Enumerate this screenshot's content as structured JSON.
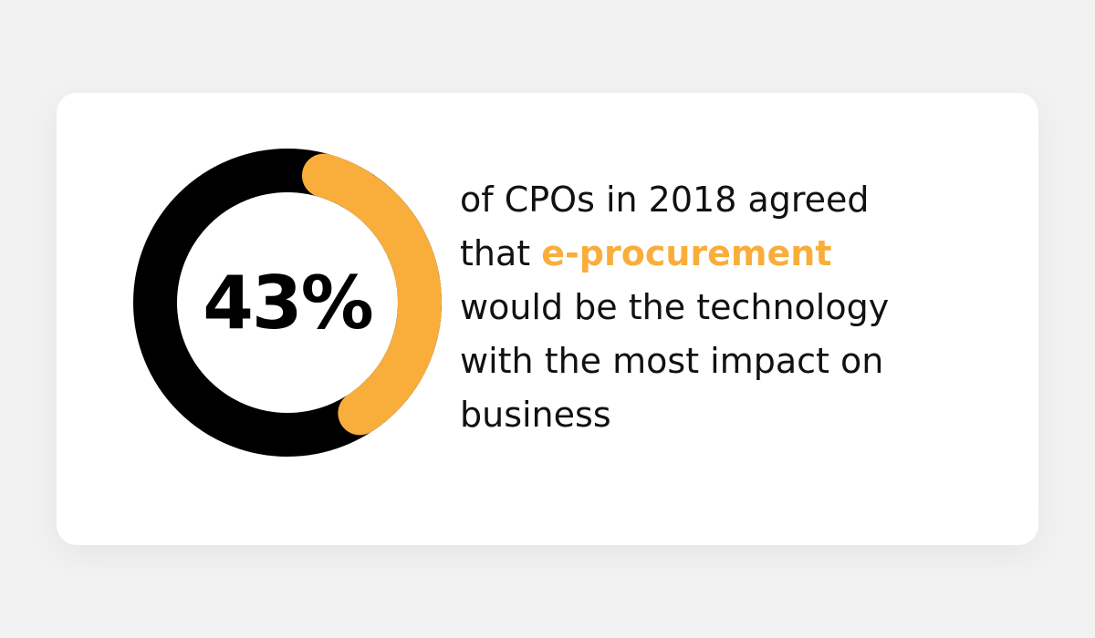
{
  "stat": {
    "value_label": "43%",
    "fraction": 0.43
  },
  "colors": {
    "accent": "#F9AE3C",
    "ring_base": "#000000",
    "card_bg": "#FFFFFF",
    "page_bg": "#F2F2F2"
  },
  "text": {
    "line1": "of CPOs in 2018 agreed",
    "line2_prefix": "that ",
    "line2_highlight": "e-procurement",
    "line3": "would be the technology",
    "line4": "with the most impact on",
    "line5": "business"
  }
}
